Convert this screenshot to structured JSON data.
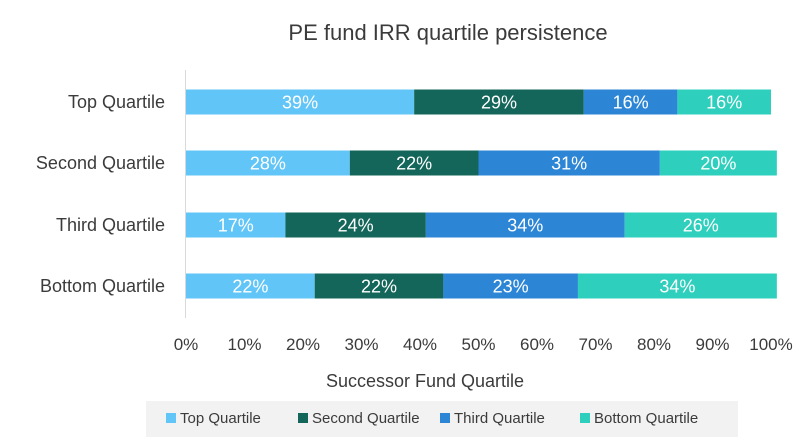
{
  "chart_data": {
    "type": "bar",
    "orientation": "horizontal",
    "stacked": true,
    "title": "PE fund IRR quartile persistence",
    "xlabel": "Successor Fund Quartile",
    "ylabel": "",
    "xlim": [
      0,
      100
    ],
    "x_ticks": [
      "0%",
      "10%",
      "20%",
      "30%",
      "40%",
      "50%",
      "60%",
      "70%",
      "80%",
      "90%",
      "100%"
    ],
    "categories": [
      "Top Quartile",
      "Second Quartile",
      "Third Quartile",
      "Bottom Quartile"
    ],
    "series": [
      {
        "name": "Top Quartile",
        "color": "#62c5f7",
        "values": [
          39,
          28,
          17,
          22
        ],
        "labels": [
          "39%",
          "28%",
          "17%",
          "22%"
        ]
      },
      {
        "name": "Second Quartile",
        "color": "#14665a",
        "values": [
          29,
          22,
          24,
          22
        ],
        "labels": [
          "29%",
          "22%",
          "24%",
          "22%"
        ]
      },
      {
        "name": "Third Quartile",
        "color": "#2d86d5",
        "values": [
          16,
          31,
          34,
          23
        ],
        "labels": [
          "16%",
          "31%",
          "34%",
          "23%"
        ]
      },
      {
        "name": "Bottom Quartile",
        "color": "#2ecfbc",
        "values": [
          16,
          20,
          26,
          34
        ],
        "labels": [
          "16%",
          "20%",
          "26%",
          "34%"
        ]
      }
    ],
    "grid": false,
    "legend_position": "bottom"
  }
}
